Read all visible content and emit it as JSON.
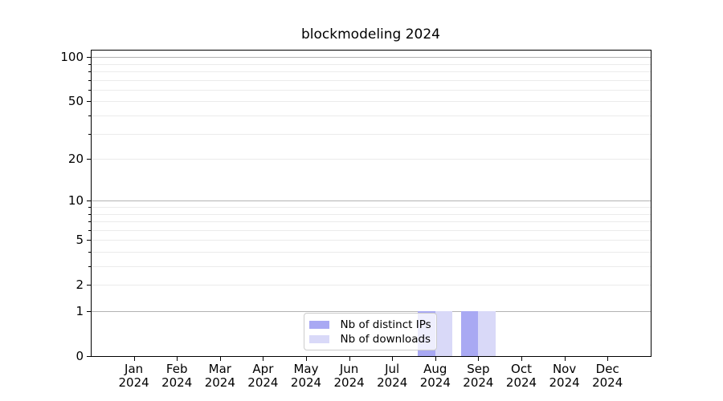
{
  "chart_data": {
    "type": "bar",
    "title": "blockmodeling 2024",
    "x_axis": {
      "months": [
        "Jan",
        "Feb",
        "Mar",
        "Apr",
        "May",
        "Jun",
        "Jul",
        "Aug",
        "Sep",
        "Oct",
        "Nov",
        "Dec"
      ],
      "year": "2024"
    },
    "y_axis": {
      "scale": "log1p",
      "ticks": [
        0,
        1,
        2,
        5,
        10,
        20,
        50,
        100
      ],
      "minor_ticks": [
        3,
        4,
        6,
        7,
        8,
        9,
        30,
        40,
        60,
        70,
        80,
        90
      ],
      "lim": [
        0,
        113
      ]
    },
    "series": [
      {
        "name": "Nb of distinct IPs",
        "color": "#a9a9f3",
        "values": [
          0,
          0,
          0,
          0,
          0,
          0,
          0,
          1,
          1,
          0,
          0,
          0
        ]
      },
      {
        "name": "Nb of downloads",
        "color": "#d9d9f8",
        "values": [
          0,
          0,
          0,
          0,
          0,
          0,
          0,
          1,
          1,
          0,
          0,
          0
        ]
      }
    ],
    "legend": {
      "entries": [
        "Nb of distinct IPs",
        "Nb of downloads"
      ],
      "position": "lower center"
    },
    "grid": {
      "axis": "y",
      "major_color": "#b3b3b3",
      "minor_color": "#ebebeb",
      "major_values": [
        1,
        10,
        100
      ]
    }
  }
}
